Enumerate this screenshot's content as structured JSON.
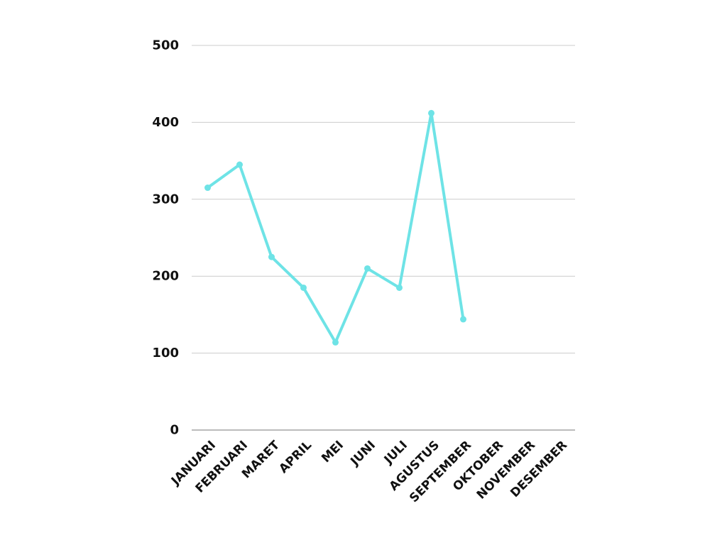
{
  "chart_data": {
    "type": "line",
    "title": "",
    "xlabel": "",
    "ylabel": "",
    "categories": [
      "JANUARI",
      "FEBRUARI",
      "MARET",
      "APRIL",
      "MEI",
      "JUNI",
      "JULI",
      "AGUSTUS",
      "SEPTEMBER",
      "OKTOBER",
      "NOVEMBER",
      "DESEMBER"
    ],
    "series": [
      {
        "values": [
          315,
          345,
          225,
          185,
          114,
          210,
          185,
          412,
          144,
          null,
          null,
          null
        ],
        "color": "#6ee3e6"
      }
    ],
    "ylim": [
      0,
      500
    ],
    "yticks": [
      "0",
      "100",
      "200",
      "300",
      "400",
      "500"
    ],
    "grid": true,
    "legend": "none",
    "colors": {
      "line": "#6ee3e6",
      "grid": "#cccccc",
      "axis": "#777777",
      "text": "#111111"
    }
  }
}
